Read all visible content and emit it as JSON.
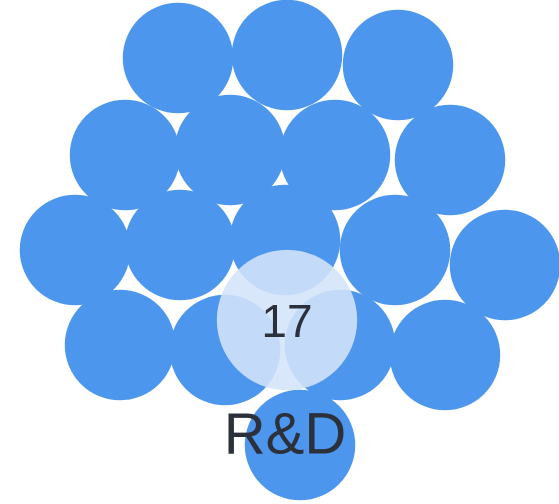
{
  "chart_data": {
    "type": "packed-bubble",
    "color": "#4d96ee",
    "highlight_color": "#d4e4f9",
    "categories": [
      null,
      null,
      null,
      null,
      null,
      null,
      null,
      null,
      null,
      null,
      null,
      null,
      null,
      null,
      null,
      null,
      null,
      "R&D"
    ],
    "values": [
      17,
      17,
      17,
      17,
      17,
      17,
      17,
      17,
      17,
      17,
      17,
      17,
      17,
      17,
      17,
      17,
      17,
      17
    ]
  }
}
